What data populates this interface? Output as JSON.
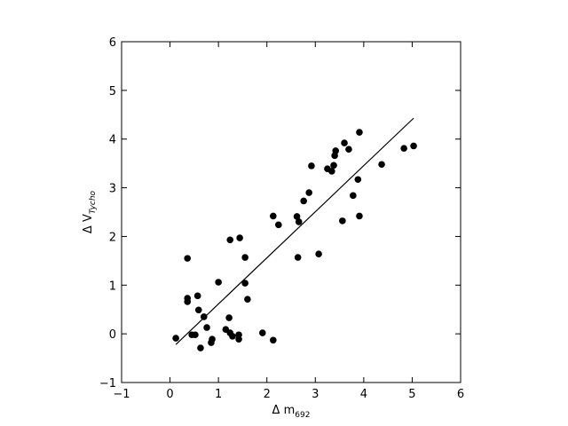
{
  "chart_data": {
    "type": "scatter",
    "x_label": "Δ m",
    "x_label_sub": "692",
    "y_label": "Δ V",
    "y_label_sub": "Tycho",
    "series": [
      {
        "color": "#000000",
        "x": [
          0.12,
          0.36,
          0.36,
          0.36,
          0.45,
          0.52,
          0.57,
          0.59,
          0.63,
          0.7,
          0.76,
          0.85,
          0.87,
          1.0,
          1.15,
          1.22,
          1.24,
          1.24,
          1.29,
          1.44,
          1.42,
          1.42,
          1.55,
          1.55,
          1.6,
          1.91,
          2.13,
          2.13,
          2.24,
          2.62,
          2.66,
          2.64,
          2.76,
          2.87,
          2.92,
          3.07,
          3.25,
          3.34,
          3.38,
          3.4,
          3.42,
          3.56,
          3.6,
          3.69,
          3.78,
          3.88,
          3.91,
          3.91,
          4.37,
          4.83,
          5.03
        ],
        "values": [
          -0.09,
          1.55,
          0.73,
          0.66,
          -0.02,
          -0.02,
          0.78,
          0.49,
          -0.29,
          0.35,
          0.13,
          -0.18,
          -0.11,
          1.06,
          0.09,
          0.33,
          1.93,
          0.02,
          -0.05,
          1.97,
          -0.02,
          -0.11,
          1.04,
          1.57,
          0.71,
          0.02,
          2.42,
          -0.13,
          2.24,
          2.41,
          2.3,
          1.57,
          2.73,
          2.9,
          3.45,
          1.64,
          3.39,
          3.34,
          3.46,
          3.66,
          3.76,
          2.32,
          3.92,
          3.79,
          2.84,
          3.17,
          2.42,
          4.14,
          3.48,
          3.81,
          3.86
        ]
      }
    ],
    "fit_line": {
      "color": "#000000",
      "x": [
        0.12,
        5.03
      ],
      "values": [
        -0.22,
        4.43
      ]
    },
    "xlim": [
      -1,
      6
    ],
    "ylim": [
      -1,
      6
    ],
    "xticks": [
      {
        "value": -1,
        "label": "−1"
      },
      0,
      1,
      2,
      3,
      4,
      5,
      6
    ],
    "yticks": [
      {
        "value": -1,
        "label": "−1"
      },
      0,
      1,
      2,
      3,
      4,
      5,
      6
    ]
  }
}
